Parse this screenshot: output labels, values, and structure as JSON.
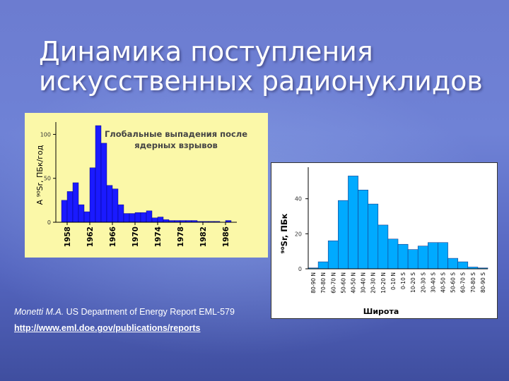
{
  "slide": {
    "title_line1": "Динамика поступления",
    "title_line2": "искусственных радионуклидов",
    "caption_author": "Monetti M.A.",
    "caption_text": " US Department of Energy Report EML-579",
    "caption_url": "http://www.eml.doe.gov/publications/reports"
  },
  "chart_data": [
    {
      "type": "bar",
      "title": "Глобальные выпадения после ядерных взрывов",
      "title_lines": [
        "Глобальные выпадения после",
        "ядерных взрывов"
      ],
      "ylabel": "A ⁹⁰Sr, ПБк/год",
      "xlabel": "",
      "ylim": [
        0,
        110
      ],
      "yticks": [
        0,
        50,
        100
      ],
      "xlim": [
        1956,
        1988
      ],
      "xticks": [
        1958,
        1962,
        1966,
        1970,
        1974,
        1978,
        1982,
        1986
      ],
      "x": [
        1957,
        1958,
        1959,
        1960,
        1961,
        1962,
        1963,
        1964,
        1965,
        1966,
        1967,
        1968,
        1969,
        1970,
        1971,
        1972,
        1973,
        1974,
        1975,
        1976,
        1977,
        1978,
        1979,
        1980,
        1981,
        1982,
        1983,
        1984,
        1985,
        1986
      ],
      "values": [
        25,
        35,
        45,
        20,
        12,
        62,
        110,
        90,
        42,
        38,
        20,
        10,
        10,
        11,
        11,
        13,
        5,
        6,
        3,
        2,
        2,
        2,
        2,
        2,
        1,
        1,
        1,
        1,
        0,
        2
      ],
      "colors": {
        "bar": "#1a1aff",
        "background": "#fbf8a8",
        "title": "#444444"
      }
    },
    {
      "type": "bar",
      "title": "",
      "ylabel": "⁹⁰Sr, ПБк",
      "xlabel": "Широта",
      "ylim": [
        0,
        58
      ],
      "yticks": [
        0,
        20,
        40
      ],
      "categories": [
        "80-90 N",
        "70-80 N",
        "60-70 N",
        "50-60 N",
        "40-50 N",
        "30-40 N",
        "20-30 N",
        "10-20 N",
        "0-10 N",
        "0-10 S",
        "10-20 S",
        "20-30 S",
        "30-40 S",
        "40-50 S",
        "50-60 S",
        "60-70 S",
        "70-80 S",
        "80-90 S"
      ],
      "values": [
        0.5,
        4,
        16,
        39,
        53,
        45,
        37,
        25,
        17,
        14,
        11,
        13,
        15,
        15,
        6,
        4,
        1,
        0.5
      ],
      "colors": {
        "bar": "#00aaff",
        "background": "#ffffff"
      }
    }
  ]
}
